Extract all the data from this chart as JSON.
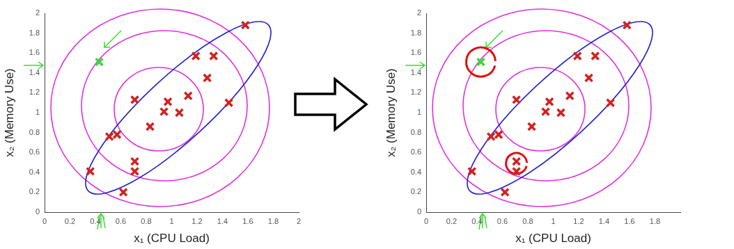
{
  "chart_data": [
    {
      "type": "scatter",
      "xlabel": "x₁ (CPU Load)",
      "ylabel": "x₂ (Memory Use)",
      "xlim": [
        0,
        2
      ],
      "xticks": [
        0,
        0.2,
        0.4,
        0.6,
        0.8,
        1,
        1.2,
        1.4,
        1.6,
        1.8,
        2
      ],
      "ylim": [
        0,
        2
      ],
      "yticks": [
        0,
        0.2,
        0.4,
        0.6,
        0.8,
        1,
        1.2,
        1.4,
        1.6,
        1.8,
        2
      ],
      "grid": false,
      "legend": false,
      "marker": "cross",
      "series": [
        {
          "color": "#d42020",
          "x": [
            1.58,
            1.19,
            1.33,
            1.28,
            1.45,
            1.13,
            0.97,
            0.94,
            1.06,
            0.71,
            0.83,
            0.51,
            0.57,
            0.71,
            0.71,
            0.36,
            0.62
          ],
          "values": [
            1.88,
            1.57,
            1.57,
            1.35,
            1.1,
            1.17,
            1.11,
            1.01,
            1,
            1.13,
            0.86,
            0.76,
            0.78,
            0.51,
            0.41,
            0.41,
            0.2
          ]
        },
        {
          "color": "#33dd33",
          "x": [
            0.43
          ],
          "values": [
            1.51
          ]
        }
      ]
    },
    {
      "type": "scatter",
      "xlabel": "x₁ (CPU Load)",
      "ylabel": "x₂ (Memory Use)",
      "xlim": [
        0,
        2
      ],
      "xticks": [
        0,
        0.2,
        0.4,
        0.6,
        0.8,
        1,
        1.2,
        1.4,
        1.6,
        1.8
      ],
      "ylim": [
        0,
        2
      ],
      "yticks": [
        0,
        0.2,
        0.4,
        0.6,
        0.8,
        1,
        1.2,
        1.4,
        1.6,
        1.8,
        2
      ],
      "grid": false,
      "legend": false,
      "marker": "cross",
      "series": [
        {
          "color": "#d42020",
          "x": [
            1.58,
            1.19,
            1.33,
            1.28,
            1.45,
            1.13,
            0.97,
            0.94,
            1.06,
            0.71,
            0.83,
            0.51,
            0.57,
            0.71,
            0.71,
            0.36,
            0.62
          ],
          "values": [
            1.88,
            1.57,
            1.57,
            1.35,
            1.1,
            1.17,
            1.11,
            1.01,
            1,
            1.13,
            0.86,
            0.76,
            0.78,
            0.51,
            0.41,
            0.41,
            0.2
          ]
        },
        {
          "color": "#33dd33",
          "x": [
            0.43
          ],
          "values": [
            1.51
          ]
        }
      ]
    }
  ]
}
